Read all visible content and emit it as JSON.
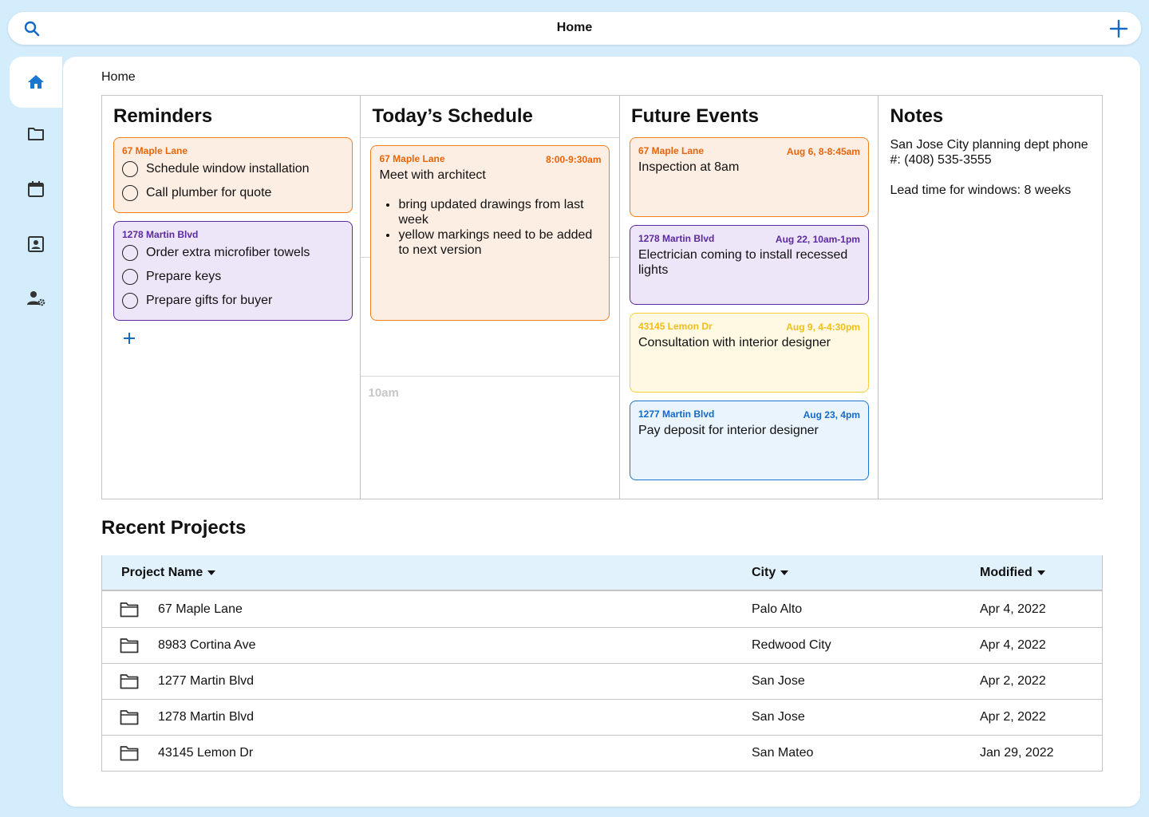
{
  "topbar": {
    "title": "Home",
    "search_icon": "search-icon",
    "add_icon": "plus-icon"
  },
  "sidebar": {
    "items": [
      {
        "name": "home",
        "icon": "home-icon",
        "active": true
      },
      {
        "name": "projects",
        "icon": "folder-icon"
      },
      {
        "name": "calendar",
        "icon": "calendar-icon"
      },
      {
        "name": "contacts",
        "icon": "contact-card-icon"
      },
      {
        "name": "user-settings",
        "icon": "user-settings-icon"
      }
    ]
  },
  "breadcrumb": "Home",
  "reminders": {
    "title": "Reminders",
    "groups": [
      {
        "tag": "67 Maple Lane",
        "items": [
          "Schedule window installation",
          "Call plumber for quote"
        ]
      },
      {
        "tag": "1278 Martin Blvd",
        "items": [
          "Order extra microfiber towels",
          "Prepare keys",
          "Prepare gifts for buyer"
        ]
      }
    ]
  },
  "schedule": {
    "title": "Today’s Schedule",
    "event": {
      "tag": "67 Maple Lane",
      "time": "8:00-9:30am",
      "title": "Meet with architect",
      "bullets": [
        "bring updated drawings from last week",
        "yellow markings need to be added to next version"
      ]
    },
    "time_label": "10am"
  },
  "future_events": {
    "title": "Future Events",
    "events": [
      {
        "tag": "67 Maple Lane",
        "time": "Aug 6, 8-8:45am",
        "text": "Inspection at 8am"
      },
      {
        "tag": "1278 Martin Blvd",
        "time": "Aug 22, 10am-1pm",
        "text": "Electrician coming to install recessed lights"
      },
      {
        "tag": "43145 Lemon Dr",
        "time": "Aug 9, 4-4:30pm",
        "text": "Consultation with interior designer"
      },
      {
        "tag": "1277 Martin Blvd",
        "time": "Aug 23, 4pm",
        "text": "Pay deposit for interior designer"
      }
    ]
  },
  "notes": {
    "title": "Notes",
    "lines": [
      "San Jose City planning dept phone #: (408) 535-3555",
      "Lead time for windows: 8 weeks"
    ]
  },
  "recent_projects": {
    "title": "Recent Projects",
    "columns": [
      "Project Name",
      "City",
      "Modified"
    ],
    "rows": [
      {
        "name": "67 Maple Lane",
        "city": "Palo Alto",
        "modified": "Apr 4, 2022"
      },
      {
        "name": "8983 Cortina Ave",
        "city": "Redwood City",
        "modified": "Apr 4, 2022"
      },
      {
        "name": "1277 Martin Blvd",
        "city": "San Jose",
        "modified": "Apr 2, 2022"
      },
      {
        "name": "1278 Martin Blvd",
        "city": "San Jose",
        "modified": "Apr 2, 2022"
      },
      {
        "name": "43145 Lemon Dr",
        "city": "San Mateo",
        "modified": "Jan 29, 2022"
      }
    ]
  },
  "colors": {
    "background": "#d3edfd",
    "accent": "#1569c7",
    "orange": "#f37f18",
    "purple": "#5b2a9e",
    "yellow": "#f5cf3a",
    "blue": "#1976d2"
  }
}
